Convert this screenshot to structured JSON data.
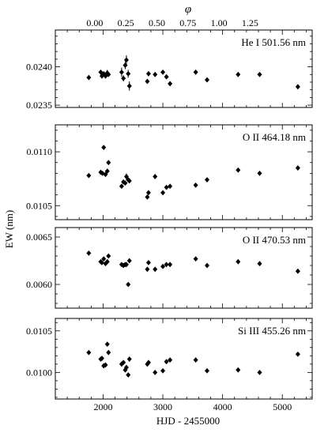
{
  "chart_data": {
    "type": "scatter",
    "top_axis": {
      "label": "φ",
      "ticks": [
        "0.00",
        "0.25",
        "0.50",
        "0.75",
        "1.00",
        "1.25"
      ]
    },
    "xlabel": "HJD - 2455000",
    "ylabel": "EW (nm)",
    "x_ticks": [
      "2000",
      "3000",
      "4000",
      "5000"
    ],
    "x_tick_values": [
      2000,
      3000,
      4000,
      5000
    ],
    "top_tick_x_values": [
      1860,
      2380,
      2900,
      3420,
      3940,
      4460
    ],
    "xlim": [
      1200,
      5500
    ],
    "panels": [
      {
        "label": "He I 501.56 nm",
        "ylim": [
          0.02347,
          0.02448
        ],
        "y_tick_values": [
          0.0235,
          0.024
        ],
        "y_ticks": [
          "0.0235",
          "0.0240"
        ],
        "points": [
          {
            "x": 1760,
            "y": 0.02386,
            "err": 3e-05
          },
          {
            "x": 1960,
            "y": 0.02393,
            "err": 3e-05
          },
          {
            "x": 1980,
            "y": 0.02388,
            "err": 3e-05
          },
          {
            "x": 2010,
            "y": 0.02391,
            "err": 3e-05
          },
          {
            "x": 2040,
            "y": 0.02388,
            "err": 3e-05
          },
          {
            "x": 2070,
            "y": 0.02392,
            "err": 4e-05
          },
          {
            "x": 2090,
            "y": 0.0239,
            "err": 3e-05
          },
          {
            "x": 2310,
            "y": 0.02393,
            "err": 6e-05
          },
          {
            "x": 2340,
            "y": 0.02385,
            "err": 4e-05
          },
          {
            "x": 2370,
            "y": 0.02402,
            "err": 5e-05
          },
          {
            "x": 2390,
            "y": 0.02409,
            "err": 6e-05
          },
          {
            "x": 2420,
            "y": 0.02391,
            "err": 5e-05
          },
          {
            "x": 2440,
            "y": 0.02375,
            "err": 6e-05
          },
          {
            "x": 2740,
            "y": 0.02381,
            "err": 3e-05
          },
          {
            "x": 2760,
            "y": 0.02391,
            "err": 3e-05
          },
          {
            "x": 2870,
            "y": 0.0239,
            "err": 3e-05
          },
          {
            "x": 3000,
            "y": 0.02393,
            "err": 3e-05
          },
          {
            "x": 3060,
            "y": 0.02387,
            "err": 3e-05
          },
          {
            "x": 3120,
            "y": 0.02378,
            "err": 3e-05
          },
          {
            "x": 3550,
            "y": 0.02393,
            "err": 3e-05
          },
          {
            "x": 3740,
            "y": 0.02383,
            "err": 3e-05
          },
          {
            "x": 4260,
            "y": 0.0239,
            "err": 3e-05
          },
          {
            "x": 4620,
            "y": 0.0239,
            "err": 3e-05
          },
          {
            "x": 5260,
            "y": 0.02374,
            "err": 3e-05
          }
        ]
      },
      {
        "label": "O II 464.18 nm",
        "ylim": [
          0.01037,
          0.01125
        ],
        "y_tick_values": [
          0.0105,
          0.011
        ],
        "y_ticks": [
          "0.0105",
          "0.0110"
        ],
        "points": [
          {
            "x": 1760,
            "y": 0.01078,
            "err": 1.5e-05
          },
          {
            "x": 1960,
            "y": 0.01081,
            "err": 1.5e-05
          },
          {
            "x": 1990,
            "y": 0.0108,
            "err": 1.5e-05
          },
          {
            "x": 2010,
            "y": 0.01104,
            "err": 1.5e-05
          },
          {
            "x": 2040,
            "y": 0.01079,
            "err": 1.5e-05
          },
          {
            "x": 2070,
            "y": 0.01082,
            "err": 1.5e-05
          },
          {
            "x": 2090,
            "y": 0.0109,
            "err": 2e-05
          },
          {
            "x": 2310,
            "y": 0.01068,
            "err": 2e-05
          },
          {
            "x": 2340,
            "y": 0.01072,
            "err": 2e-05
          },
          {
            "x": 2370,
            "y": 0.01071,
            "err": 2e-05
          },
          {
            "x": 2390,
            "y": 0.01077,
            "err": 3e-05
          },
          {
            "x": 2420,
            "y": 0.01074,
            "err": 2e-05
          },
          {
            "x": 2440,
            "y": 0.01073,
            "err": 2e-05
          },
          {
            "x": 2740,
            "y": 0.01058,
            "err": 1.5e-05
          },
          {
            "x": 2760,
            "y": 0.01062,
            "err": 1.5e-05
          },
          {
            "x": 2870,
            "y": 0.01077,
            "err": 1.5e-05
          },
          {
            "x": 3000,
            "y": 0.01062,
            "err": 1.5e-05
          },
          {
            "x": 3060,
            "y": 0.01067,
            "err": 1.5e-05
          },
          {
            "x": 3120,
            "y": 0.01068,
            "err": 1.5e-05
          },
          {
            "x": 3550,
            "y": 0.01069,
            "err": 1.5e-05
          },
          {
            "x": 3740,
            "y": 0.01074,
            "err": 1.5e-05
          },
          {
            "x": 4260,
            "y": 0.01083,
            "err": 1.5e-05
          },
          {
            "x": 4620,
            "y": 0.0108,
            "err": 1.5e-05
          },
          {
            "x": 5260,
            "y": 0.01085,
            "err": 1.5e-05
          }
        ]
      },
      {
        "label": "O II 470.53 nm",
        "ylim": [
          0.00575,
          0.0066
        ],
        "y_tick_values": [
          0.006,
          0.0065
        ],
        "y_ticks": [
          "0.0060",
          "0.0065"
        ],
        "points": [
          {
            "x": 1760,
            "y": 0.00633,
            "err": 1e-05
          },
          {
            "x": 1960,
            "y": 0.00624,
            "err": 1e-05
          },
          {
            "x": 1980,
            "y": 0.00623,
            "err": 1e-05
          },
          {
            "x": 2010,
            "y": 0.00627,
            "err": 1e-05
          },
          {
            "x": 2040,
            "y": 0.00622,
            "err": 1e-05
          },
          {
            "x": 2070,
            "y": 0.00624,
            "err": 1e-05
          },
          {
            "x": 2090,
            "y": 0.0063,
            "err": 1.5e-05
          },
          {
            "x": 2310,
            "y": 0.00621,
            "err": 1.5e-05
          },
          {
            "x": 2340,
            "y": 0.0062,
            "err": 1.5e-05
          },
          {
            "x": 2370,
            "y": 0.00621,
            "err": 1.5e-05
          },
          {
            "x": 2390,
            "y": 0.00621,
            "err": 2e-05
          },
          {
            "x": 2420,
            "y": 0.006,
            "err": 1.5e-05
          },
          {
            "x": 2440,
            "y": 0.00625,
            "err": 2e-05
          },
          {
            "x": 2740,
            "y": 0.00616,
            "err": 1e-05
          },
          {
            "x": 2760,
            "y": 0.00623,
            "err": 1e-05
          },
          {
            "x": 2870,
            "y": 0.00616,
            "err": 1e-05
          },
          {
            "x": 3000,
            "y": 0.00619,
            "err": 1e-05
          },
          {
            "x": 3060,
            "y": 0.00621,
            "err": 1e-05
          },
          {
            "x": 3120,
            "y": 0.00621,
            "err": 1e-05
          },
          {
            "x": 3550,
            "y": 0.00627,
            "err": 1e-05
          },
          {
            "x": 3740,
            "y": 0.0062,
            "err": 1e-05
          },
          {
            "x": 4260,
            "y": 0.00624,
            "err": 1e-05
          },
          {
            "x": 4620,
            "y": 0.00622,
            "err": 1e-05
          },
          {
            "x": 5260,
            "y": 0.00614,
            "err": 1e-05
          }
        ]
      },
      {
        "label": "Si III 455.26 nm",
        "ylim": [
          0.00968,
          0.01065
        ],
        "y_tick_values": [
          0.01,
          0.0105
        ],
        "y_ticks": [
          "0.0100",
          "0.0105"
        ],
        "points": [
          {
            "x": 1760,
            "y": 0.01024,
            "err": 2e-05
          },
          {
            "x": 1960,
            "y": 0.01016,
            "err": 1.5e-05
          },
          {
            "x": 1980,
            "y": 0.01017,
            "err": 1.5e-05
          },
          {
            "x": 2010,
            "y": 0.01008,
            "err": 1.5e-05
          },
          {
            "x": 2040,
            "y": 0.01009,
            "err": 1.5e-05
          },
          {
            "x": 2070,
            "y": 0.01034,
            "err": 2e-05
          },
          {
            "x": 2090,
            "y": 0.01024,
            "err": 2.5e-05
          },
          {
            "x": 2310,
            "y": 0.0101,
            "err": 2e-05
          },
          {
            "x": 2340,
            "y": 0.01012,
            "err": 2e-05
          },
          {
            "x": 2370,
            "y": 0.01003,
            "err": 2e-05
          },
          {
            "x": 2390,
            "y": 0.01006,
            "err": 3e-05
          },
          {
            "x": 2420,
            "y": 0.00997,
            "err": 2e-05
          },
          {
            "x": 2440,
            "y": 0.01016,
            "err": 3e-05
          },
          {
            "x": 2740,
            "y": 0.0101,
            "err": 1.5e-05
          },
          {
            "x": 2760,
            "y": 0.01012,
            "err": 1.5e-05
          },
          {
            "x": 2870,
            "y": 0.01,
            "err": 1.5e-05
          },
          {
            "x": 3000,
            "y": 0.01002,
            "err": 1.5e-05
          },
          {
            "x": 3060,
            "y": 0.01013,
            "err": 1.5e-05
          },
          {
            "x": 3120,
            "y": 0.01015,
            "err": 1.5e-05
          },
          {
            "x": 3550,
            "y": 0.01015,
            "err": 1.5e-05
          },
          {
            "x": 3740,
            "y": 0.01002,
            "err": 1.5e-05
          },
          {
            "x": 4260,
            "y": 0.01003,
            "err": 1.5e-05
          },
          {
            "x": 4620,
            "y": 0.01,
            "err": 1.5e-05
          },
          {
            "x": 5260,
            "y": 0.01022,
            "err": 1.5e-05
          }
        ]
      }
    ]
  }
}
